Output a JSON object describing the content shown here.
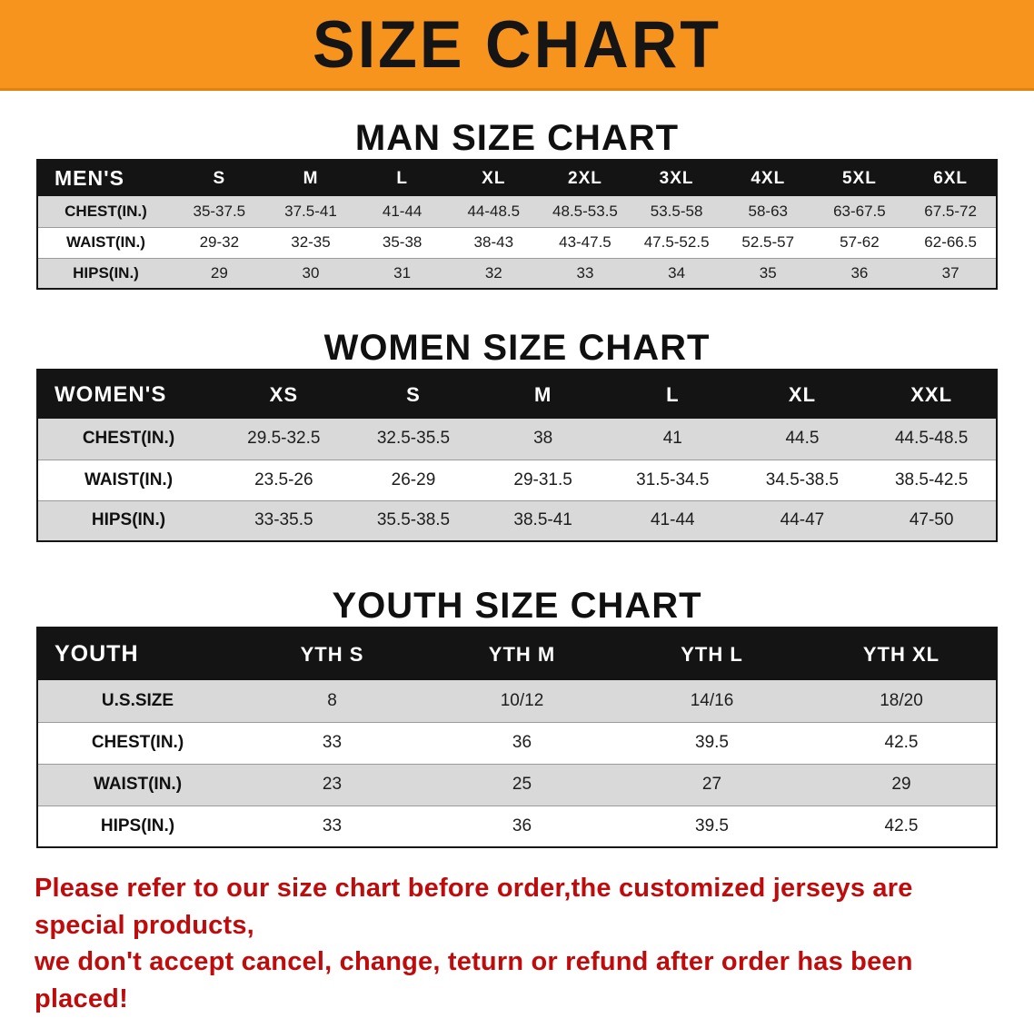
{
  "banner": {
    "title": "SIZE CHART"
  },
  "colors": {
    "banner_bg": "#f7941e",
    "banner_edge": "#e0820c",
    "header_row_bg": "#141414",
    "shade_row_bg": "#d9d9d9",
    "note_color": "#bf0b0b"
  },
  "chart_data": [
    {
      "type": "table",
      "title": "MAN SIZE CHART",
      "header": [
        "MEN'S",
        "S",
        "M",
        "L",
        "XL",
        "2XL",
        "3XL",
        "4XL",
        "5XL",
        "6XL"
      ],
      "rows": [
        {
          "label": "CHEST(IN.)",
          "values": [
            "35-37.5",
            "37.5-41",
            "41-44",
            "44-48.5",
            "48.5-53.5",
            "53.5-58",
            "58-63",
            "63-67.5",
            "67.5-72"
          ]
        },
        {
          "label": "WAIST(IN.)",
          "values": [
            "29-32",
            "32-35",
            "35-38",
            "38-43",
            "43-47.5",
            "47.5-52.5",
            "52.5-57",
            "57-62",
            "62-66.5"
          ]
        },
        {
          "label": "HIPS(IN.)",
          "values": [
            "29",
            "30",
            "31",
            "32",
            "33",
            "34",
            "35",
            "36",
            "37"
          ]
        }
      ]
    },
    {
      "type": "table",
      "title": "WOMEN SIZE CHART",
      "header": [
        "WOMEN'S",
        "XS",
        "S",
        "M",
        "L",
        "XL",
        "XXL"
      ],
      "rows": [
        {
          "label": "CHEST(IN.)",
          "values": [
            "29.5-32.5",
            "32.5-35.5",
            "38",
            "41",
            "44.5",
            "44.5-48.5"
          ]
        },
        {
          "label": "WAIST(IN.)",
          "values": [
            "23.5-26",
            "26-29",
            "29-31.5",
            "31.5-34.5",
            "34.5-38.5",
            "38.5-42.5"
          ]
        },
        {
          "label": "HIPS(IN.)",
          "values": [
            "33-35.5",
            "35.5-38.5",
            "38.5-41",
            "41-44",
            "44-47",
            "47-50"
          ]
        }
      ]
    },
    {
      "type": "table",
      "title": "YOUTH SIZE CHART",
      "header": [
        "YOUTH",
        "YTH S",
        "YTH M",
        "YTH L",
        "YTH XL"
      ],
      "rows": [
        {
          "label": "U.S.SIZE",
          "values": [
            "8",
            "10/12",
            "14/16",
            "18/20"
          ]
        },
        {
          "label": "CHEST(IN.)",
          "values": [
            "33",
            "36",
            "39.5",
            "42.5"
          ]
        },
        {
          "label": "WAIST(IN.)",
          "values": [
            "23",
            "25",
            "27",
            "29"
          ]
        },
        {
          "label": "HIPS(IN.)",
          "values": [
            "33",
            "36",
            "39.5",
            "42.5"
          ]
        }
      ]
    }
  ],
  "footer_note": {
    "line1": "Please refer to our size chart before order,the customized jerseys are special products,",
    "line2": "we don't accept cancel, change, teturn or refund after order has been placed!"
  }
}
